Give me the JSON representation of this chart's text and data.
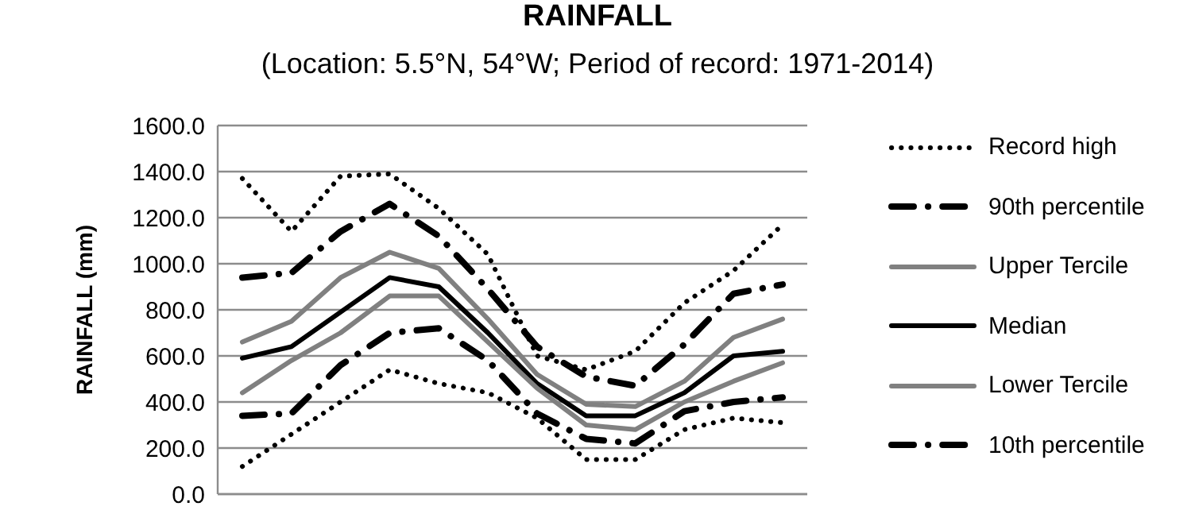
{
  "chart_data": {
    "type": "line",
    "title": "RAINFALL",
    "subtitle": "(Location: 5.5°N, 54°W; Period of record: 1971-2014)",
    "ylabel": "RAINFALL (mm)",
    "categories": [
      null,
      null,
      null,
      null,
      null,
      null,
      null,
      null,
      null,
      null,
      null,
      null
    ],
    "ylim": [
      0,
      1600
    ],
    "yticks": [
      {
        "value": 0,
        "label": "0.0"
      },
      {
        "value": 200,
        "label": "200.0"
      },
      {
        "value": 400,
        "label": "400.0"
      },
      {
        "value": 600,
        "label": "600.0"
      },
      {
        "value": 800,
        "label": "800.0"
      },
      {
        "value": 1000,
        "label": "1000.0"
      },
      {
        "value": 1200,
        "label": "1200.0"
      },
      {
        "value": 1400,
        "label": "1400.0"
      },
      {
        "value": 1600,
        "label": "1600.0"
      }
    ],
    "grid": "y",
    "legend": "right",
    "marker": "none",
    "series": [
      {
        "name": "Record high",
        "color": "#000000",
        "line_style": "dotted",
        "values": [
          1370,
          1140,
          1380,
          1390,
          1240,
          1040,
          600,
          540,
          620,
          830,
          970,
          1170
        ]
      },
      {
        "name": "90th percentile",
        "color": "#000000",
        "line_style": "dashed",
        "values": [
          940,
          960,
          1140,
          1260,
          1120,
          890,
          640,
          510,
          470,
          650,
          870,
          910
        ]
      },
      {
        "name": "Upper Tercile",
        "color": "#808080",
        "line_style": "solid",
        "values": [
          660,
          750,
          940,
          1050,
          980,
          760,
          520,
          390,
          380,
          490,
          680,
          760
        ]
      },
      {
        "name": "Median",
        "color": "#000000",
        "line_style": "solid",
        "values": [
          590,
          640,
          790,
          940,
          900,
          700,
          480,
          340,
          340,
          440,
          600,
          620
        ]
      },
      {
        "name": "Lower Tercile",
        "color": "#808080",
        "line_style": "solid",
        "values": [
          440,
          580,
          700,
          860,
          860,
          660,
          460,
          300,
          280,
          400,
          490,
          570
        ]
      },
      {
        "name": "10th percentile",
        "color": "#000000",
        "line_style": "dashed",
        "values": [
          340,
          350,
          560,
          700,
          720,
          580,
          350,
          240,
          220,
          360,
          400,
          420
        ]
      },
      {
        "color": "#000000",
        "line_style": "dotted",
        "values": [
          120,
          260,
          400,
          540,
          480,
          440,
          330,
          150,
          150,
          280,
          330,
          310
        ]
      }
    ]
  }
}
